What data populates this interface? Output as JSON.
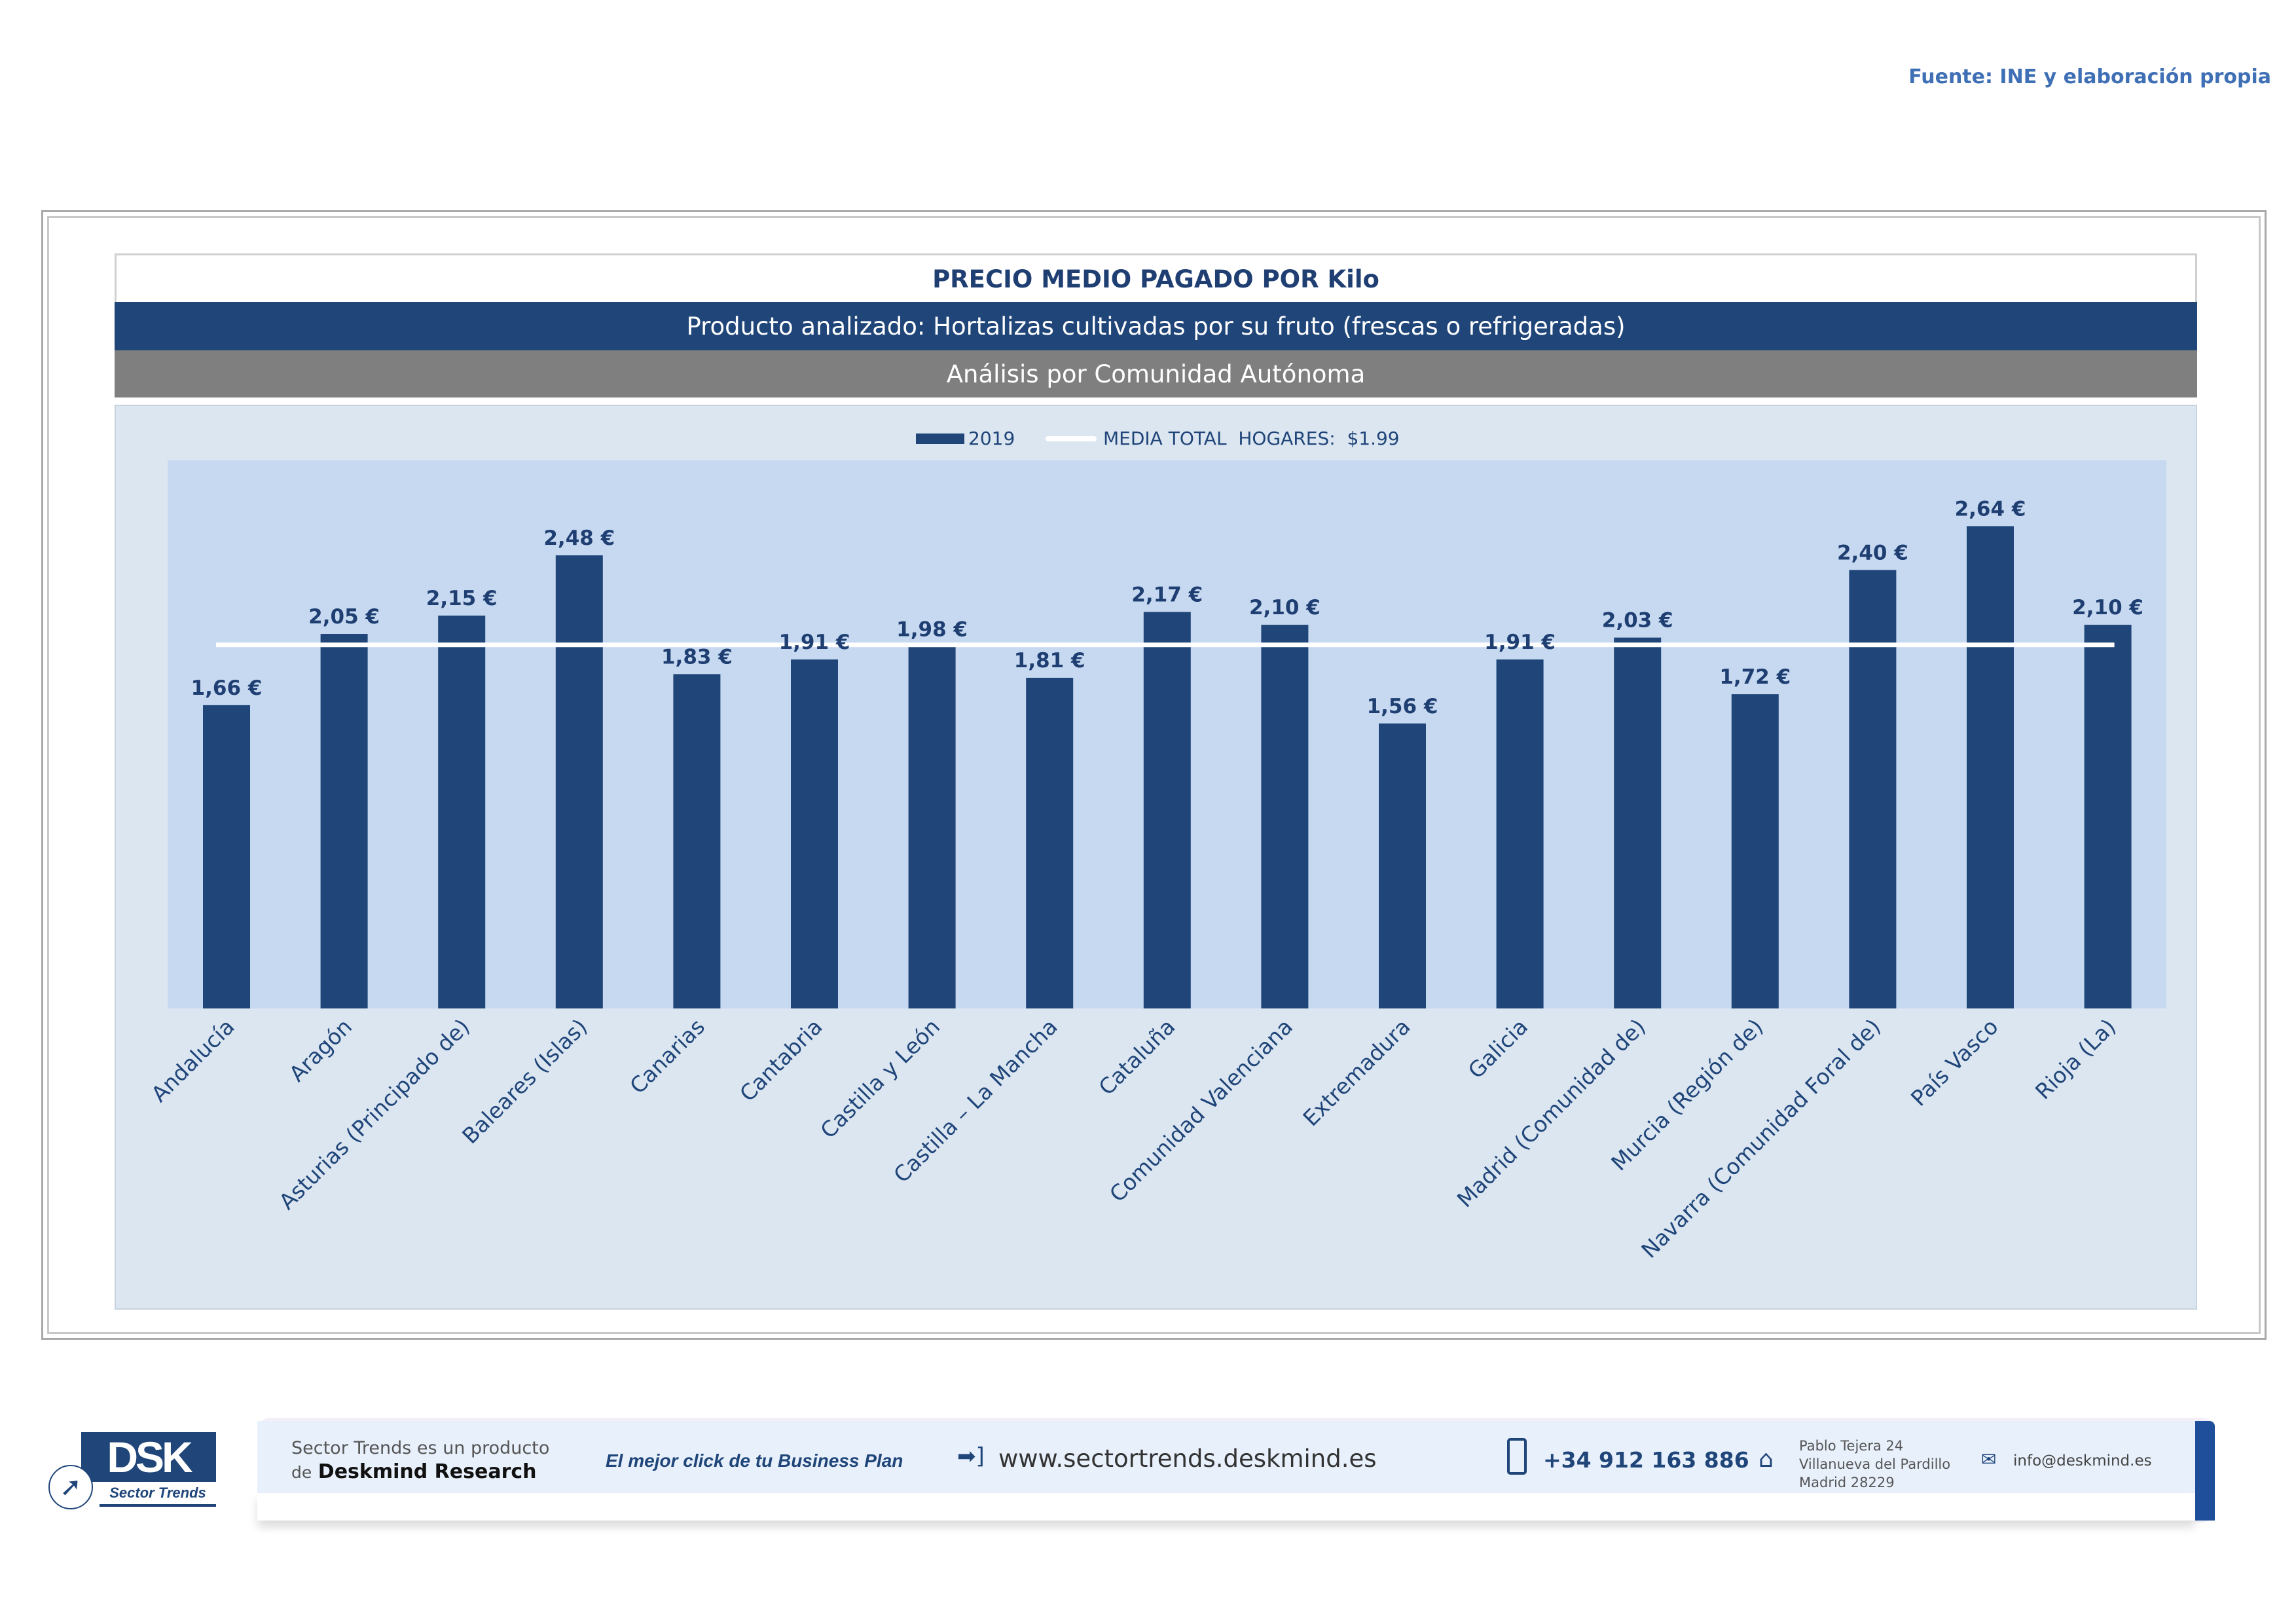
{
  "source": "Fuente: INE y elaboración propia",
  "header": {
    "title": "PRECIO MEDIO PAGADO POR Kilo",
    "product": "Producto analizado: Hortalizas cultivadas por su fruto (frescas o refrigeradas)",
    "analysis": "Análisis por Comunidad Autónoma"
  },
  "chart_data": {
    "type": "bar",
    "title": "PRECIO MEDIO PAGADO POR Kilo",
    "xlabel": "",
    "ylabel": "",
    "ylim": [
      0,
      3
    ],
    "grid": false,
    "legend_position": "top-center",
    "categories": [
      "Andalucía",
      "Aragón",
      "Asturias (Principado de)",
      "Baleares (Islas)",
      "Canarias",
      "Cantabria",
      "Castilla y León",
      "Castilla – La Mancha",
      "Cataluña",
      "Comunidad Valenciana",
      "Extremadura",
      "Galicia",
      "Madrid (Comunidad de)",
      "Murcia (Región de)",
      "Navarra (Comunidad Foral de)",
      "País Vasco",
      "Rioja (La)"
    ],
    "series": [
      {
        "name": "2019",
        "color": "#1f4579",
        "values": [
          1.66,
          2.05,
          2.15,
          2.48,
          1.83,
          1.91,
          1.98,
          1.81,
          2.17,
          2.1,
          1.56,
          1.91,
          2.03,
          1.72,
          2.4,
          2.64,
          2.1
        ],
        "labels": [
          "1,66 €",
          "2,05 €",
          "2,15 €",
          "2,48 €",
          "1,83 €",
          "1,91 €",
          "1,98 €",
          "1,81 €",
          "2,17 €",
          "2,10 €",
          "1,56 €",
          "1,91 €",
          "2,03 €",
          "1,72 €",
          "2,40 €",
          "2,64 €",
          "2,10 €"
        ]
      }
    ],
    "reference_line": {
      "name": "MEDIA TOTAL  HOGARES:  $1.99",
      "value": 1.99,
      "color": "#ffffff"
    }
  },
  "footer": {
    "logo_text": "DSK",
    "logo_sub": "Sector Trends",
    "product_line1": "Sector Trends es un producto",
    "product_line2_prefix": "de",
    "product_line2_brand": "Deskmind Research",
    "slogan": "El mejor click de tu Business Plan",
    "website": "www.sectortrends.deskmind.es",
    "phone": "+34 912 163 886",
    "address_line1": "Pablo Tejera 24",
    "address_line2": "Villanueva del Pardillo",
    "address_line3": "Madrid 28229",
    "email": "info@deskmind.es"
  }
}
